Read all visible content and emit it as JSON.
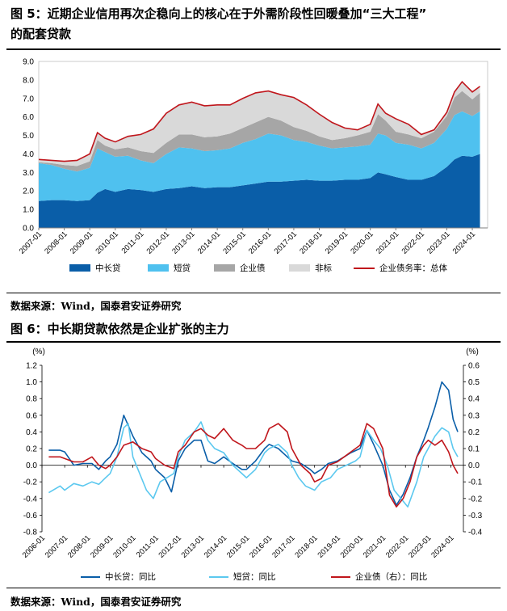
{
  "figure5": {
    "title_line1": "图 5：近期企业信用再次企稳向上的核心在于外需阶段性回暖叠加“三大工程”",
    "title_line2": "的配套贷款",
    "source": "数据来源：Wind，国泰君安证券研究"
  },
  "figure6": {
    "title": "图 6：中长期贷款依然是企业扩张的主力",
    "source": "数据来源：Wind，国泰君安证券研究"
  },
  "colors": {
    "mid_long": "#0a5ea8",
    "short": "#4fc1ef",
    "enterprise_bond": "#a6a6a6",
    "non_standard": "#d9d9d9",
    "total": "#c0161c",
    "light_blue_line": "#5bc8ef"
  },
  "chart_data": [
    {
      "type": "area",
      "title": "近期企业信用再次企稳向上的核心在于外需阶段性回暖叠加“三大工程”的配套贷款",
      "x_ticks": [
        "2007-01",
        "2008-01",
        "2009-01",
        "2010-01",
        "2011-01",
        "2012-01",
        "2013-01",
        "2014-01",
        "2015-01",
        "2016-01",
        "2017-01",
        "2018-01",
        "2019-01",
        "2020-01",
        "2021-01",
        "2022-01",
        "2023-01",
        "2024-01"
      ],
      "y_ticks": [
        "0.0",
        "1.0",
        "2.0",
        "3.0",
        "4.0",
        "5.0",
        "6.0",
        "7.0",
        "8.0",
        "9.0"
      ],
      "ylim": [
        0,
        9
      ],
      "x": [
        2007.0,
        2007.5,
        2008.0,
        2008.5,
        2009.0,
        2009.3,
        2009.6,
        2010.0,
        2010.5,
        2011.0,
        2011.5,
        2012.0,
        2012.5,
        2013.0,
        2013.5,
        2014.0,
        2014.5,
        2015.0,
        2015.5,
        2016.0,
        2016.5,
        2017.0,
        2017.5,
        2018.0,
        2018.5,
        2019.0,
        2019.5,
        2020.0,
        2020.3,
        2020.6,
        2021.0,
        2021.5,
        2022.0,
        2022.5,
        2023.0,
        2023.3,
        2023.6,
        2024.0,
        2024.3
      ],
      "series": [
        {
          "name": "中长贷",
          "values": [
            1.45,
            1.5,
            1.5,
            1.45,
            1.5,
            1.9,
            2.1,
            1.95,
            2.1,
            2.05,
            1.95,
            2.1,
            2.15,
            2.25,
            2.15,
            2.2,
            2.2,
            2.3,
            2.4,
            2.5,
            2.5,
            2.55,
            2.6,
            2.55,
            2.55,
            2.6,
            2.6,
            2.7,
            3.0,
            2.9,
            2.75,
            2.6,
            2.6,
            2.8,
            3.3,
            3.7,
            3.9,
            3.85,
            4.0
          ]
        },
        {
          "name": "短贷",
          "values": [
            2.05,
            1.9,
            1.7,
            1.6,
            1.75,
            2.4,
            2.0,
            1.9,
            1.8,
            1.6,
            1.55,
            1.9,
            2.2,
            2.05,
            2.0,
            2.0,
            2.1,
            2.3,
            2.4,
            2.6,
            2.5,
            2.2,
            2.05,
            1.9,
            1.75,
            1.75,
            1.8,
            1.8,
            2.1,
            2.1,
            1.85,
            1.9,
            1.7,
            1.8,
            2.05,
            2.4,
            2.4,
            2.2,
            2.3
          ]
        },
        {
          "name": "企业债",
          "values": [
            0.05,
            0.1,
            0.2,
            0.3,
            0.35,
            0.45,
            0.35,
            0.4,
            0.45,
            0.5,
            0.55,
            0.6,
            0.7,
            0.75,
            0.75,
            0.75,
            0.8,
            0.8,
            0.9,
            0.9,
            0.8,
            0.7,
            0.6,
            0.5,
            0.45,
            0.5,
            0.6,
            0.7,
            1.05,
            0.8,
            0.6,
            0.55,
            0.55,
            0.6,
            0.7,
            0.95,
            1.1,
            0.9,
            1.0
          ]
        },
        {
          "name": "非标",
          "values": [
            0.15,
            0.15,
            0.2,
            0.3,
            0.4,
            0.4,
            0.4,
            0.4,
            0.6,
            0.9,
            1.3,
            1.6,
            1.6,
            1.75,
            1.7,
            1.7,
            1.55,
            1.6,
            1.6,
            1.4,
            1.4,
            1.6,
            1.4,
            1.2,
            0.95,
            0.55,
            0.3,
            0.4,
            0.55,
            0.4,
            0.7,
            0.55,
            0.2,
            0.1,
            0.2,
            0.3,
            0.5,
            0.4,
            0.35
          ]
        },
        {
          "name": "企业债务率：总体",
          "values": [
            3.7,
            3.65,
            3.6,
            3.65,
            4.0,
            5.15,
            4.85,
            4.65,
            4.95,
            5.05,
            5.35,
            6.2,
            6.65,
            6.8,
            6.6,
            6.65,
            6.65,
            7.0,
            7.3,
            7.4,
            7.2,
            7.05,
            6.65,
            6.15,
            5.7,
            5.4,
            5.3,
            5.6,
            6.7,
            6.2,
            5.9,
            5.6,
            5.05,
            5.3,
            6.25,
            7.35,
            7.9,
            7.35,
            7.65
          ]
        }
      ],
      "legend": [
        "中长贷",
        "短贷",
        "企业债",
        "非标",
        "企业债务率：总体"
      ]
    },
    {
      "type": "line",
      "title": "中长期贷款依然是企业扩张的主力",
      "x_ticks": [
        "2006-01",
        "2007-01",
        "2008-01",
        "2009-01",
        "2010-01",
        "2011-01",
        "2012-01",
        "2013-01",
        "2014-01",
        "2015-01",
        "2016-01",
        "2017-01",
        "2018-01",
        "2019-01",
        "2020-01",
        "2021-01",
        "2022-01",
        "2023-01",
        "2024-01"
      ],
      "y_left_unit": "(%)",
      "y_right_unit": "(%)",
      "y_left_ticks": [
        "-0.8",
        "-0.6",
        "-0.4",
        "-0.2",
        "0.0",
        "0.2",
        "0.4",
        "0.6",
        "0.8",
        "1.0",
        "1.2"
      ],
      "y_right_ticks": [
        "-0.4",
        "-0.3",
        "-0.2",
        "-0.1",
        "0.0",
        "0.1",
        "0.2",
        "0.3",
        "0.4",
        "0.5",
        "0.6"
      ],
      "ylim_left": [
        -0.8,
        1.2
      ],
      "ylim_right": [
        -0.4,
        0.6
      ],
      "series": [
        {
          "name": "中长贷：同比",
          "axis": "left",
          "x": [
            2006.3,
            2006.8,
            2007.0,
            2007.4,
            2007.8,
            2008.2,
            2008.5,
            2008.8,
            2009.0,
            2009.3,
            2009.6,
            2010.0,
            2010.4,
            2010.8,
            2011.0,
            2011.4,
            2011.7,
            2012.0,
            2012.3,
            2012.7,
            2013.0,
            2013.3,
            2013.6,
            2014.0,
            2014.4,
            2014.8,
            2015.0,
            2015.4,
            2015.8,
            2016.0,
            2016.4,
            2016.8,
            2017.0,
            2017.4,
            2017.8,
            2018.0,
            2018.3,
            2018.6,
            2019.0,
            2019.3,
            2019.6,
            2020.0,
            2020.3,
            2020.6,
            2021.0,
            2021.3,
            2021.6,
            2021.9,
            2022.2,
            2022.5,
            2022.8,
            2023.0,
            2023.3,
            2023.6,
            2023.9,
            2024.1,
            2024.3
          ],
          "values": [
            0.18,
            0.18,
            0.16,
            0.0,
            0.02,
            0.02,
            -0.05,
            0.05,
            0.1,
            0.25,
            0.6,
            0.35,
            0.15,
            0.05,
            -0.05,
            -0.15,
            -0.32,
            0.05,
            0.2,
            0.3,
            0.3,
            0.05,
            0.02,
            0.1,
            0.02,
            -0.05,
            -0.05,
            0.05,
            0.2,
            0.25,
            0.2,
            0.1,
            0.05,
            0.02,
            -0.05,
            -0.1,
            -0.05,
            0.02,
            0.05,
            0.1,
            0.15,
            0.2,
            0.42,
            0.25,
            0.0,
            -0.3,
            -0.48,
            -0.35,
            -0.15,
            0.1,
            0.3,
            0.45,
            0.7,
            1.0,
            0.9,
            0.55,
            0.4
          ]
        },
        {
          "name": "短贷：同比",
          "axis": "left",
          "x": [
            2006.3,
            2006.8,
            2007.0,
            2007.4,
            2007.8,
            2008.2,
            2008.5,
            2008.8,
            2009.0,
            2009.3,
            2009.6,
            2009.8,
            2010.0,
            2010.3,
            2010.6,
            2010.9,
            2011.2,
            2011.5,
            2011.8,
            2012.0,
            2012.3,
            2012.7,
            2013.0,
            2013.3,
            2013.6,
            2014.0,
            2014.4,
            2014.8,
            2015.0,
            2015.4,
            2015.8,
            2016.0,
            2016.4,
            2016.8,
            2017.0,
            2017.3,
            2017.6,
            2018.0,
            2018.3,
            2018.7,
            2019.0,
            2019.4,
            2019.8,
            2020.0,
            2020.3,
            2020.6,
            2020.9,
            2021.2,
            2021.5,
            2021.8,
            2022.1,
            2022.5,
            2022.8,
            2023.0,
            2023.3,
            2023.6,
            2023.9,
            2024.1,
            2024.3
          ],
          "values": [
            -0.33,
            -0.25,
            -0.3,
            -0.22,
            -0.25,
            -0.2,
            -0.23,
            -0.15,
            -0.1,
            0.1,
            0.45,
            0.5,
            0.1,
            -0.1,
            -0.3,
            -0.4,
            -0.2,
            -0.15,
            -0.1,
            0.1,
            0.3,
            0.4,
            0.52,
            0.3,
            0.2,
            0.15,
            0.0,
            -0.1,
            -0.15,
            -0.05,
            0.15,
            0.2,
            0.25,
            0.15,
            0.0,
            -0.15,
            -0.25,
            -0.3,
            -0.2,
            -0.15,
            -0.05,
            0.0,
            0.05,
            0.1,
            0.42,
            0.3,
            0.2,
            0.0,
            -0.3,
            -0.4,
            -0.5,
            -0.2,
            0.1,
            0.2,
            0.35,
            0.45,
            0.4,
            0.2,
            0.1
          ]
        },
        {
          "name": "企业债（右）：同比",
          "axis": "right",
          "x": [
            2006.3,
            2006.8,
            2007.0,
            2007.4,
            2007.8,
            2008.2,
            2008.5,
            2008.8,
            2009.0,
            2009.3,
            2009.6,
            2010.0,
            2010.4,
            2010.8,
            2011.0,
            2011.4,
            2011.8,
            2012.0,
            2012.3,
            2012.7,
            2013.0,
            2013.3,
            2013.6,
            2014.0,
            2014.4,
            2014.8,
            2015.0,
            2015.4,
            2015.8,
            2016.0,
            2016.4,
            2016.8,
            2017.0,
            2017.4,
            2017.8,
            2018.0,
            2018.3,
            2018.6,
            2019.0,
            2019.3,
            2019.6,
            2020.0,
            2020.3,
            2020.6,
            2021.0,
            2021.3,
            2021.6,
            2021.9,
            2022.2,
            2022.5,
            2022.8,
            2023.0,
            2023.3,
            2023.6,
            2023.9,
            2024.1,
            2024.3
          ],
          "values": [
            0.05,
            0.05,
            0.04,
            0.02,
            0.02,
            0.05,
            0.0,
            -0.02,
            0.0,
            0.05,
            0.12,
            0.14,
            0.1,
            0.08,
            0.04,
            0.0,
            -0.02,
            0.08,
            0.12,
            0.2,
            0.22,
            0.18,
            0.16,
            0.22,
            0.15,
            0.12,
            0.1,
            0.1,
            0.15,
            0.22,
            0.25,
            0.2,
            0.1,
            0.0,
            -0.05,
            -0.1,
            -0.08,
            0.0,
            0.02,
            0.05,
            0.08,
            0.12,
            0.25,
            0.22,
            0.1,
            -0.18,
            -0.25,
            -0.2,
            -0.1,
            0.05,
            0.12,
            0.15,
            0.12,
            0.15,
            0.08,
            0.0,
            -0.05
          ]
        }
      ],
      "legend": [
        "中长贷：同比",
        "短贷：同比",
        "企业债（右）：同比"
      ]
    }
  ]
}
